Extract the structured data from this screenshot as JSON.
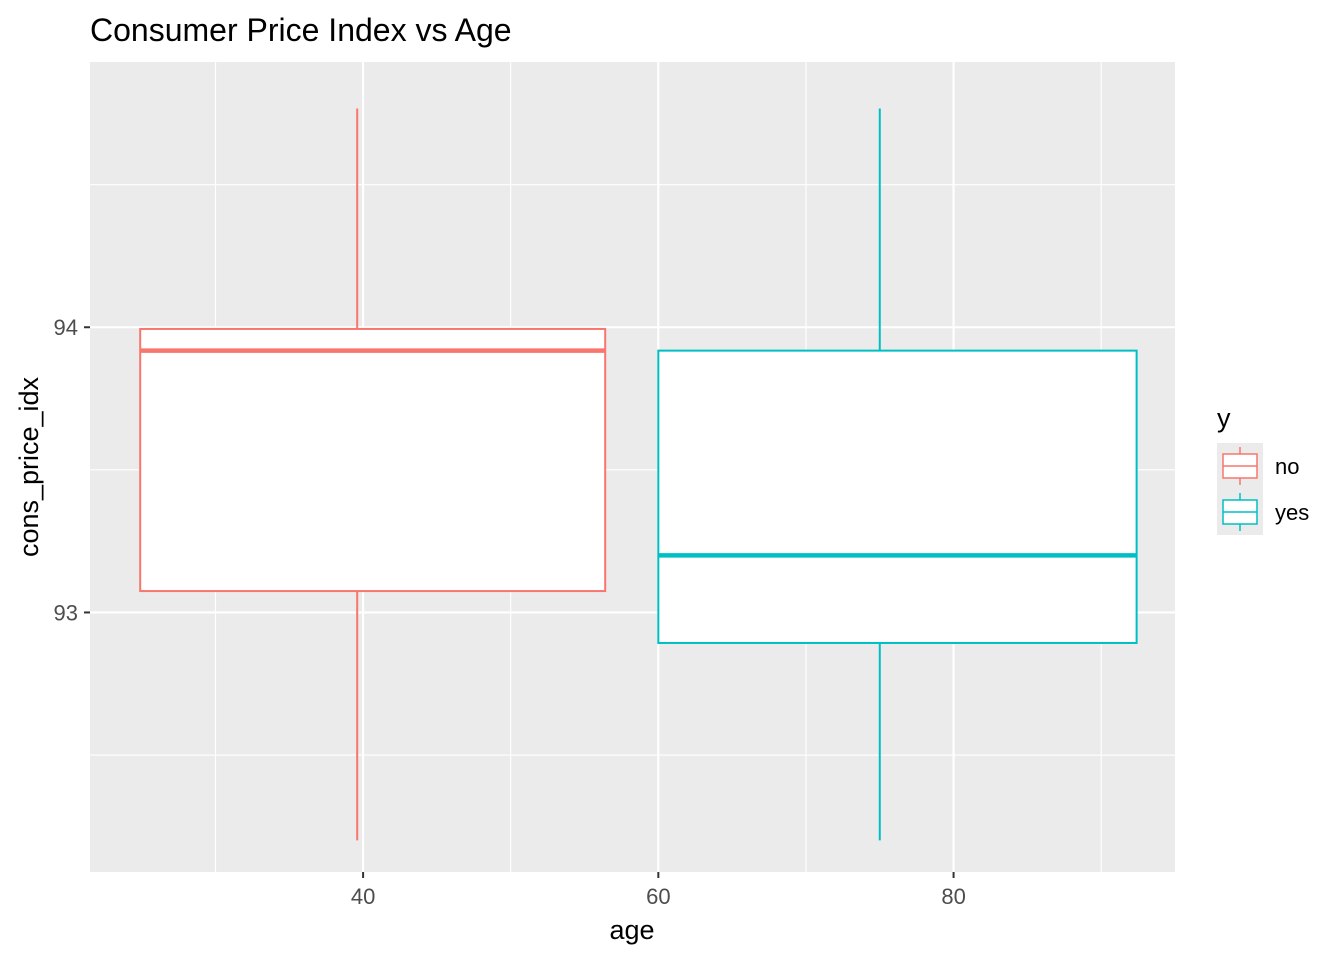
{
  "chart_data": {
    "type": "boxplot",
    "title": "Consumer Price Index vs Age",
    "xlabel": "age",
    "ylabel": "cons_price_idx",
    "xlim": [
      21.5,
      95
    ],
    "ylim": [
      92.09,
      94.93
    ],
    "x_ticks": [
      40,
      60,
      80
    ],
    "x_tick_labels": [
      "40",
      "60",
      "80"
    ],
    "x_minor_ticks": [
      30,
      50,
      70,
      90
    ],
    "y_ticks": [
      93,
      94
    ],
    "y_tick_labels": [
      "93",
      "94"
    ],
    "y_minor_ticks": [
      92.5,
      93.5,
      94.5
    ],
    "grid": true,
    "legend": {
      "title": "y",
      "position": "right",
      "entries": [
        {
          "label": "no",
          "color": "#F8766D"
        },
        {
          "label": "yes",
          "color": "#00BFC4"
        }
      ]
    },
    "series": [
      {
        "name": "no",
        "color": "#F8766D",
        "x_range": [
          24.9,
          56.4
        ],
        "x_center": 39.6,
        "whisker_low": 92.201,
        "q1": 93.075,
        "median": 93.918,
        "q3": 93.994,
        "whisker_high": 94.767
      },
      {
        "name": "yes",
        "color": "#00BFC4",
        "x_range": [
          60,
          92.4
        ],
        "x_center": 75,
        "whisker_low": 92.201,
        "q1": 92.893,
        "median": 93.2,
        "q3": 93.918,
        "whisker_high": 94.767
      }
    ],
    "colors": {
      "panel_background": "#EBEBEB",
      "grid": "#FFFFFF",
      "box_fill": "#FFFFFF"
    }
  }
}
